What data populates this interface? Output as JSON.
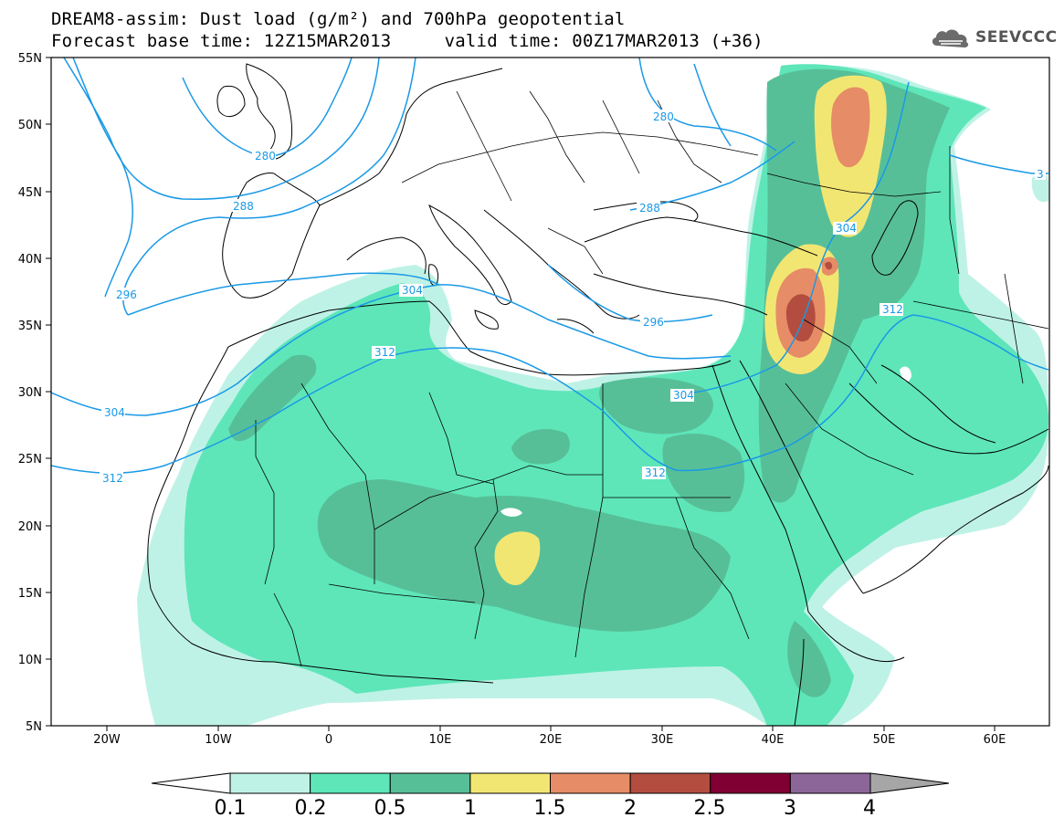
{
  "title": {
    "line1": "DREAM8-assim: Dust load (g/m²) and 700hPa geopotential",
    "line2": "Forecast base time: 12Z15MAR2013     valid time: 00Z17MAR2013 (+36)"
  },
  "logo": {
    "text": "SEEVCCC",
    "icon": "cloud-logo-icon"
  },
  "axes": {
    "lat_labels": [
      "55N",
      "50N",
      "45N",
      "40N",
      "35N",
      "30N",
      "25N",
      "20N",
      "15N",
      "10N",
      "5N"
    ],
    "lon_labels": [
      "20W",
      "10W",
      "0",
      "10E",
      "20E",
      "30E",
      "40E",
      "50E",
      "60E"
    ]
  },
  "contour_labels": [
    "280",
    "280",
    "280",
    "288",
    "288",
    "296",
    "296",
    "304",
    "304",
    "304",
    "304",
    "312",
    "312",
    "312",
    "312",
    "3"
  ],
  "colorbar": {
    "ticks": [
      "0.1",
      "0.2",
      "0.5",
      "1",
      "1.5",
      "2",
      "2.5",
      "3",
      "4"
    ],
    "colors": [
      "#bff2e6",
      "#5ee6b9",
      "#57bf98",
      "#f2e673",
      "#e68c66",
      "#b34d40",
      "#800033",
      "#8c6699"
    ],
    "under_color": "#ffffff",
    "over_color": "#a6a6a6"
  },
  "colors": {
    "contour": "#1a99e6",
    "coast": "#000000"
  }
}
